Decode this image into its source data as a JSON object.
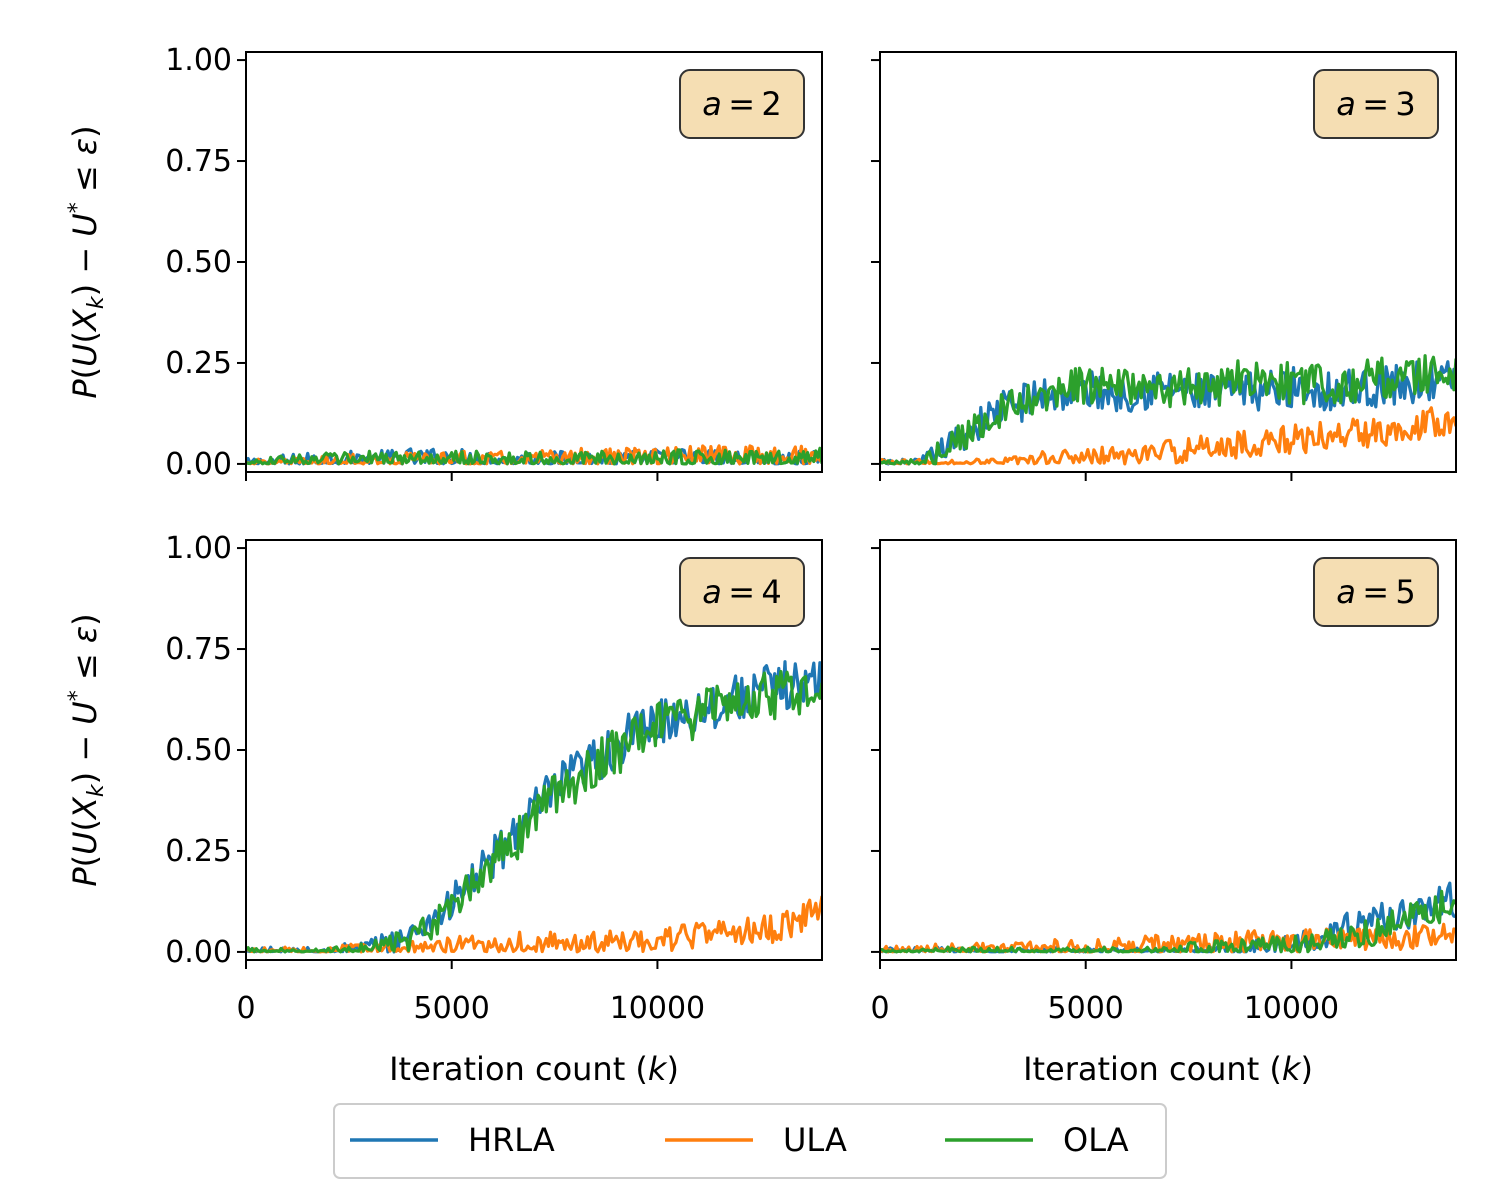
{
  "chart_data": {
    "type": "line",
    "layout": "2x2 grid, shared x and y axes",
    "legend": {
      "placement": "bottom-center",
      "entries": [
        "HRLA",
        "ULA",
        "OLA"
      ]
    },
    "xlabel": "Iteration count (k)",
    "ylabel": "P(U(X_k) − U* ≤ ε)",
    "xlim": [
      0,
      14000
    ],
    "ylim": [
      -0.02,
      1.02
    ],
    "xticks": [
      0,
      5000,
      10000
    ],
    "yticks": [
      0.0,
      0.25,
      0.5,
      0.75,
      1.0
    ],
    "ytick_labels": [
      "0.00",
      "0.25",
      "0.50",
      "0.75",
      "1.00"
    ],
    "grid": false,
    "colors": {
      "HRLA": "#1f77b4",
      "ULA": "#ff7f0e",
      "OLA": "#2ca02c",
      "badge_fill": "#f5deb3"
    },
    "panels": [
      {
        "badge": "a = 2",
        "x": [
          0,
          1000,
          2000,
          3000,
          4000,
          5000,
          6000,
          7000,
          8000,
          9000,
          10000,
          11000,
          12000,
          13000,
          14000
        ],
        "series": [
          {
            "name": "HRLA",
            "values": [
              0.0,
              0.005,
              0.01,
              0.01,
              0.015,
              0.015,
              0.01,
              0.01,
              0.01,
              0.01,
              0.015,
              0.015,
              0.01,
              0.01,
              0.01
            ]
          },
          {
            "name": "ULA",
            "values": [
              0.0,
              0.0,
              0.005,
              0.005,
              0.01,
              0.01,
              0.01,
              0.01,
              0.015,
              0.015,
              0.015,
              0.02,
              0.02,
              0.02,
              0.02
            ]
          },
          {
            "name": "OLA",
            "values": [
              0.0,
              0.005,
              0.01,
              0.01,
              0.01,
              0.01,
              0.01,
              0.01,
              0.01,
              0.01,
              0.01,
              0.015,
              0.01,
              0.01,
              0.015
            ]
          }
        ]
      },
      {
        "badge": "a = 3",
        "x": [
          0,
          1000,
          2000,
          3000,
          4000,
          5000,
          6000,
          7000,
          8000,
          9000,
          10000,
          11000,
          12000,
          13000,
          14000
        ],
        "series": [
          {
            "name": "HRLA",
            "values": [
              0.0,
              0.0,
              0.07,
              0.14,
              0.17,
              0.18,
              0.18,
              0.19,
              0.17,
              0.18,
              0.19,
              0.18,
              0.19,
              0.2,
              0.21
            ]
          },
          {
            "name": "ULA",
            "values": [
              0.0,
              0.0,
              0.0,
              0.0,
              0.01,
              0.015,
              0.02,
              0.03,
              0.04,
              0.05,
              0.06,
              0.07,
              0.08,
              0.1,
              0.12
            ]
          },
          {
            "name": "OLA",
            "values": [
              0.0,
              0.0,
              0.07,
              0.13,
              0.16,
              0.2,
              0.19,
              0.18,
              0.19,
              0.21,
              0.2,
              0.2,
              0.21,
              0.22,
              0.22
            ]
          }
        ]
      },
      {
        "badge": "a = 4",
        "x": [
          0,
          1000,
          2000,
          3000,
          4000,
          5000,
          6000,
          7000,
          8000,
          9000,
          10000,
          11000,
          12000,
          13000,
          14000
        ],
        "series": [
          {
            "name": "HRLA",
            "values": [
              0.0,
              0.0,
              0.0,
              0.01,
              0.04,
              0.12,
              0.23,
              0.35,
              0.44,
              0.51,
              0.57,
              0.6,
              0.63,
              0.66,
              0.67
            ]
          },
          {
            "name": "ULA",
            "values": [
              0.0,
              0.0,
              0.0,
              0.005,
              0.01,
              0.015,
              0.02,
              0.025,
              0.02,
              0.025,
              0.03,
              0.04,
              0.05,
              0.06,
              0.1
            ]
          },
          {
            "name": "OLA",
            "values": [
              0.0,
              0.0,
              0.0,
              0.005,
              0.03,
              0.1,
              0.22,
              0.33,
              0.43,
              0.5,
              0.56,
              0.59,
              0.62,
              0.64,
              0.65
            ]
          }
        ]
      },
      {
        "badge": "a = 5",
        "x": [
          0,
          1000,
          2000,
          3000,
          4000,
          5000,
          6000,
          7000,
          8000,
          9000,
          10000,
          11000,
          12000,
          13000,
          14000
        ],
        "series": [
          {
            "name": "HRLA",
            "values": [
              0.0,
              0.0,
              0.0,
              0.0,
              0.0,
              0.0,
              0.0,
              0.0,
              0.0,
              0.01,
              0.02,
              0.05,
              0.08,
              0.1,
              0.13
            ]
          },
          {
            "name": "ULA",
            "values": [
              0.0,
              0.005,
              0.005,
              0.005,
              0.01,
              0.01,
              0.015,
              0.02,
              0.02,
              0.025,
              0.025,
              0.03,
              0.03,
              0.035,
              0.04
            ]
          },
          {
            "name": "OLA",
            "values": [
              0.0,
              0.0,
              0.0,
              0.0,
              0.0,
              0.0,
              0.0,
              0.0,
              0.01,
              0.01,
              0.02,
              0.03,
              0.05,
              0.09,
              0.13
            ]
          }
        ]
      }
    ]
  }
}
